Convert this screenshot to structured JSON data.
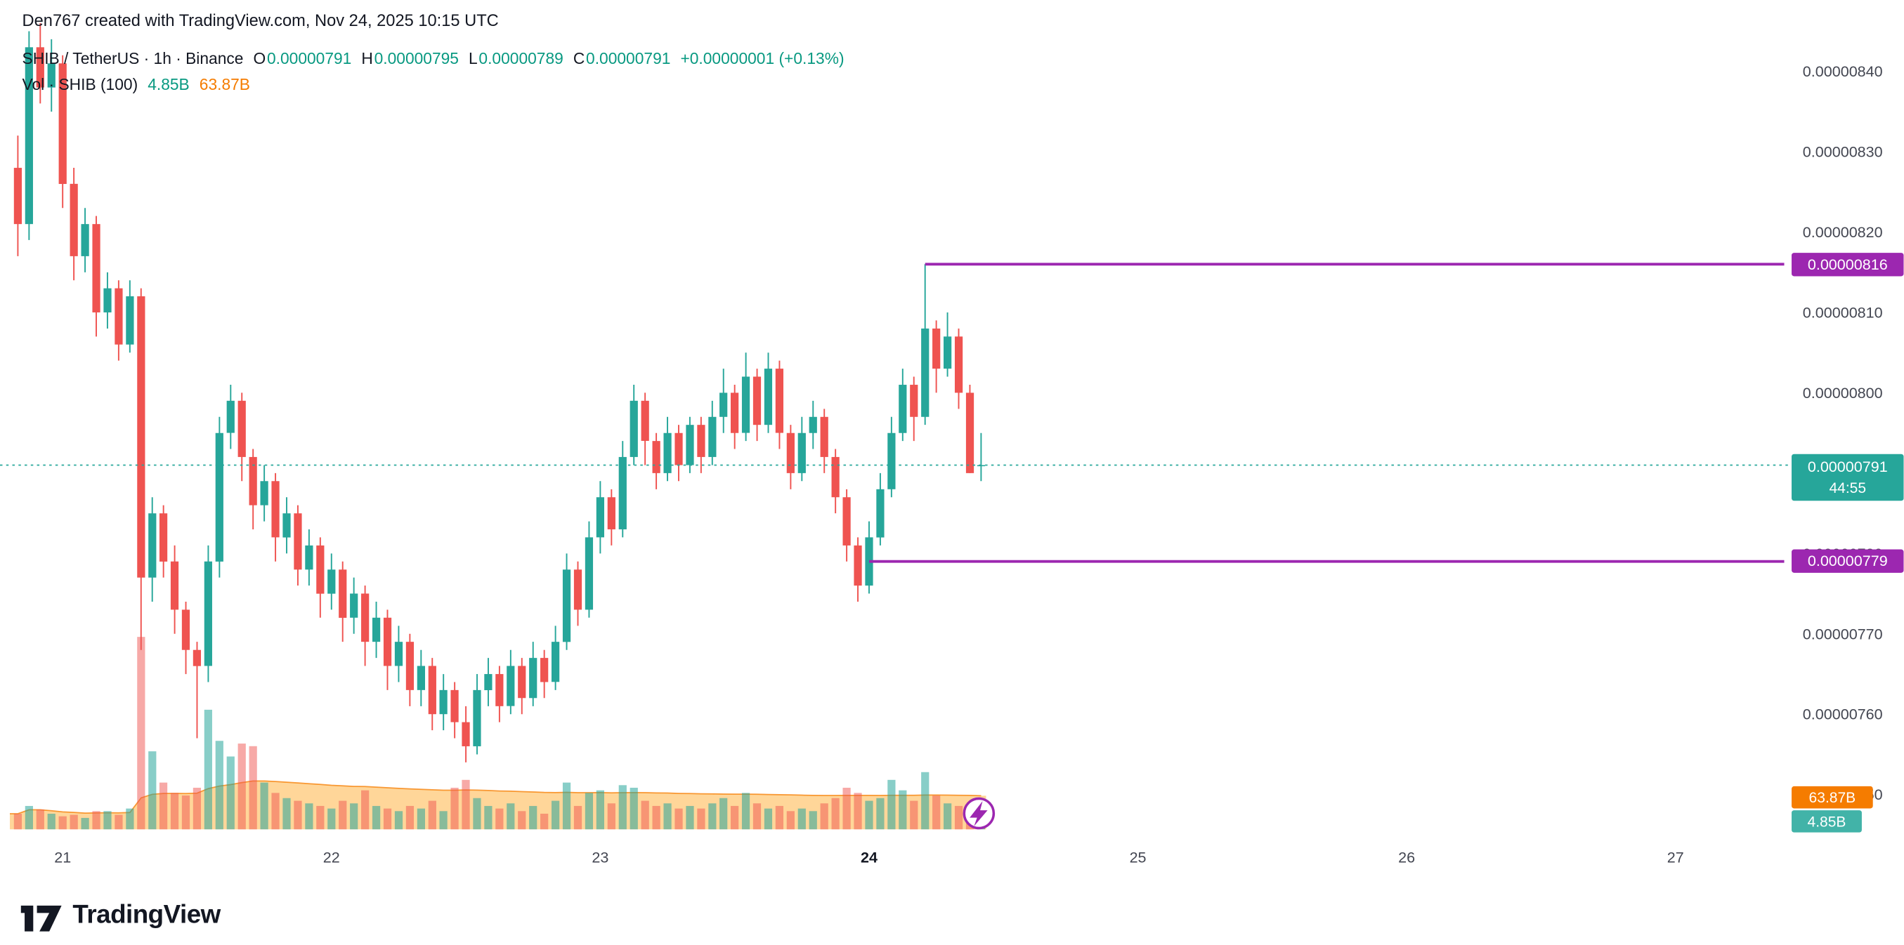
{
  "attribution": "Den767 created with TradingView.com, Nov 24, 2025 10:15 UTC",
  "legend": {
    "symbol": "SHIB / TetherUS · 1h · Binance",
    "ohlc": {
      "o_label": "O",
      "o_value": "0.00000791",
      "h_label": "H",
      "h_value": "0.00000795",
      "l_label": "L",
      "l_value": "0.00000789",
      "c_label": "C",
      "c_value": "0.00000791",
      "change": "+0.00000001 (+0.13%)"
    },
    "volume_label": "Vol · SHIB (100)",
    "volume_current": "4.85B",
    "volume_ma": "63.87B"
  },
  "badges": {
    "last_price": "0.00000791",
    "countdown": "44:55",
    "line_upper": "0.00000816",
    "line_lower": "0.00000779",
    "vol_ma": "63.87B",
    "vol_current": "4.85B"
  },
  "colors": {
    "up": "#26a69a",
    "down": "#ef5350",
    "vol_up": "rgba(38,166,154,0.55)",
    "vol_down": "rgba(239,83,80,0.5)",
    "ma_fill": "rgba(255,152,0,0.4)",
    "ma_line": "rgba(245,124,0,0.75)",
    "purple": "#9c27b0",
    "axis_text": "#434651",
    "axis_text_bold": "#131722",
    "badge_orange": "#f57c00",
    "badge_vol_teal": "#42b3a8"
  },
  "logo": {
    "wordmark": "TradingView"
  },
  "chart_data": {
    "type": "candlestick",
    "title": "SHIB / TetherUS · 1h · Binance",
    "symbol": "SHIB/TetherUS",
    "interval": "1h",
    "exchange": "Binance",
    "price_unit": 1e-08,
    "note": "candle values are price * 1e8; [open, high, low, close]",
    "candles": [
      [
        828,
        832,
        817,
        821
      ],
      [
        821,
        845,
        819,
        843
      ],
      [
        843,
        846,
        836,
        838
      ],
      [
        838,
        844,
        835,
        841
      ],
      [
        841,
        842,
        823,
        826
      ],
      [
        826,
        828,
        814,
        817
      ],
      [
        817,
        823,
        815,
        821
      ],
      [
        821,
        822,
        807,
        810
      ],
      [
        810,
        815,
        808,
        813
      ],
      [
        813,
        814,
        804,
        806
      ],
      [
        806,
        814,
        805,
        812
      ],
      [
        812,
        813,
        768,
        777
      ],
      [
        777,
        787,
        774,
        785
      ],
      [
        785,
        786,
        777,
        779
      ],
      [
        779,
        781,
        770,
        773
      ],
      [
        773,
        774,
        765,
        768
      ],
      [
        768,
        769,
        757,
        766
      ],
      [
        766,
        781,
        764,
        779
      ],
      [
        779,
        797,
        777,
        795
      ],
      [
        795,
        801,
        793,
        799
      ],
      [
        799,
        800,
        789,
        792
      ],
      [
        792,
        793,
        783,
        786
      ],
      [
        786,
        791,
        784,
        789
      ],
      [
        789,
        790,
        779,
        782
      ],
      [
        782,
        787,
        780,
        785
      ],
      [
        785,
        786,
        776,
        778
      ],
      [
        778,
        783,
        776,
        781
      ],
      [
        781,
        782,
        772,
        775
      ],
      [
        775,
        780,
        773,
        778
      ],
      [
        778,
        779,
        769,
        772
      ],
      [
        772,
        777,
        770,
        775
      ],
      [
        775,
        776,
        766,
        769
      ],
      [
        769,
        774,
        767,
        772
      ],
      [
        772,
        773,
        763,
        766
      ],
      [
        766,
        771,
        764,
        769
      ],
      [
        769,
        770,
        761,
        763
      ],
      [
        763,
        768,
        761,
        766
      ],
      [
        766,
        767,
        758,
        760
      ],
      [
        760,
        765,
        758,
        763
      ],
      [
        763,
        764,
        757,
        759
      ],
      [
        759,
        761,
        754,
        756
      ],
      [
        756,
        765,
        755,
        763
      ],
      [
        763,
        767,
        761,
        765
      ],
      [
        765,
        766,
        759,
        761
      ],
      [
        761,
        768,
        760,
        766
      ],
      [
        766,
        767,
        760,
        762
      ],
      [
        762,
        769,
        761,
        767
      ],
      [
        767,
        768,
        762,
        764
      ],
      [
        764,
        771,
        763,
        769
      ],
      [
        769,
        780,
        768,
        778
      ],
      [
        778,
        779,
        771,
        773
      ],
      [
        773,
        784,
        772,
        782
      ],
      [
        782,
        789,
        780,
        787
      ],
      [
        787,
        788,
        781,
        783
      ],
      [
        783,
        794,
        782,
        792
      ],
      [
        792,
        801,
        791,
        799
      ],
      [
        799,
        800,
        791,
        794
      ],
      [
        794,
        795,
        788,
        790
      ],
      [
        790,
        797,
        789,
        795
      ],
      [
        795,
        796,
        789,
        791
      ],
      [
        791,
        797,
        790,
        796
      ],
      [
        796,
        797,
        790,
        792
      ],
      [
        792,
        799,
        791,
        797
      ],
      [
        797,
        803,
        795,
        800
      ],
      [
        800,
        801,
        793,
        795
      ],
      [
        795,
        805,
        794,
        802
      ],
      [
        802,
        803,
        794,
        796
      ],
      [
        796,
        805,
        795,
        803
      ],
      [
        803,
        804,
        793,
        795
      ],
      [
        795,
        796,
        788,
        790
      ],
      [
        790,
        797,
        789,
        795
      ],
      [
        795,
        799,
        793,
        797
      ],
      [
        797,
        798,
        790,
        792
      ],
      [
        792,
        793,
        785,
        787
      ],
      [
        787,
        788,
        779,
        781
      ],
      [
        781,
        782,
        774,
        776
      ],
      [
        776,
        784,
        775,
        782
      ],
      [
        782,
        790,
        781,
        788
      ],
      [
        788,
        797,
        787,
        795
      ],
      [
        795,
        803,
        794,
        801
      ],
      [
        801,
        802,
        794,
        797
      ],
      [
        797,
        816,
        796,
        808
      ],
      [
        808,
        809,
        800,
        803
      ],
      [
        803,
        810,
        802,
        807
      ],
      [
        807,
        808,
        798,
        800
      ],
      [
        800,
        801,
        790,
        790
      ],
      [
        791,
        795,
        789,
        791
      ]
    ],
    "volumes_billions": [
      30,
      45,
      38,
      30,
      25,
      28,
      22,
      35,
      35,
      28,
      40,
      370,
      150,
      90,
      70,
      65,
      80,
      230,
      170,
      140,
      165,
      160,
      90,
      70,
      60,
      55,
      50,
      45,
      40,
      55,
      50,
      75,
      45,
      40,
      35,
      45,
      40,
      55,
      35,
      80,
      95,
      60,
      45,
      40,
      50,
      35,
      45,
      30,
      55,
      90,
      45,
      70,
      75,
      50,
      85,
      80,
      55,
      45,
      50,
      40,
      45,
      40,
      50,
      60,
      45,
      70,
      50,
      40,
      45,
      35,
      40,
      35,
      50,
      60,
      80,
      70,
      55,
      60,
      95,
      75,
      55,
      110,
      65,
      50,
      45,
      30,
      4.85
    ],
    "volume_ma_period": 100,
    "volume_ma_value_billions": 63.87,
    "volume_current_billions": 4.85,
    "last_price": 791,
    "last_price_label": "0.00000791",
    "countdown": "44:55",
    "horizontal_lines": [
      {
        "price": 816,
        "start_index": 81,
        "label": "0.00000816"
      },
      {
        "price": 779,
        "start_index": 76,
        "label": "0.00000779"
      }
    ],
    "y_ticks": [
      {
        "value": 840,
        "label": "0.00000840"
      },
      {
        "value": 830,
        "label": "0.00000830"
      },
      {
        "value": 820,
        "label": "0.00000820"
      },
      {
        "value": 810,
        "label": "0.00000810"
      },
      {
        "value": 800,
        "label": "0.00000800"
      },
      {
        "value": 790,
        "label": "0.00000790"
      },
      {
        "value": 780,
        "label": "0.00000780"
      },
      {
        "value": 770,
        "label": "0.00000770"
      },
      {
        "value": 760,
        "label": "0.00000760"
      },
      {
        "value": 750,
        "label": "0.00000750"
      }
    ],
    "x_ticks": [
      {
        "label": "21",
        "index": 4,
        "bold": false
      },
      {
        "label": "22",
        "index": 28,
        "bold": false
      },
      {
        "label": "23",
        "index": 52,
        "bold": false
      },
      {
        "label": "24",
        "index": 76,
        "bold": true
      },
      {
        "label": "25",
        "index": 100,
        "bold": false
      },
      {
        "label": "26",
        "index": 124,
        "bold": false
      },
      {
        "label": "27",
        "index": 148,
        "bold": false
      }
    ],
    "ylim": [
      748,
      848
    ],
    "grid": false,
    "legend_position": "top-left"
  }
}
